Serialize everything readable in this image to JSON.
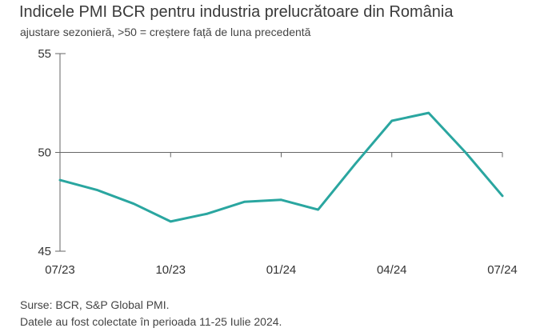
{
  "header": {
    "title": "Indicele PMI BCR pentru industria prelucrătoare din România",
    "subtitle": "ajustare sezonieră, >50 = creștere față de luna precedentă"
  },
  "footer": {
    "source_line1": "Surse: BCR, S&P Global PMI.",
    "source_line2": "Datele au fost colectate în perioada 11-25 Iulie 2024."
  },
  "chart_data": {
    "type": "line",
    "title": "Indicele PMI BCR pentru industria prelucrătoare din România",
    "subtitle": "ajustare sezonieră, >50 = creștere față de luna precedentă",
    "x": [
      "07/23",
      "08/23",
      "09/23",
      "10/23",
      "11/23",
      "12/23",
      "01/24",
      "02/24",
      "03/24",
      "04/24",
      "05/24",
      "06/24",
      "07/24"
    ],
    "series": [
      {
        "values": [
          48.6,
          48.1,
          47.4,
          46.5,
          46.9,
          47.5,
          47.6,
          47.1,
          49.4,
          51.6,
          52.0,
          50.0,
          47.8
        ]
      }
    ],
    "x_tick_labels": [
      "07/23",
      "10/23",
      "01/24",
      "04/24",
      "07/24"
    ],
    "x_tick_indices": [
      0,
      3,
      6,
      9,
      12
    ],
    "y_ticks": [
      45,
      50,
      55
    ],
    "ylim": [
      45,
      55
    ],
    "reference_line": 50,
    "line_color": "#2aa6a0",
    "axis_color": "#666666",
    "grid": false
  }
}
